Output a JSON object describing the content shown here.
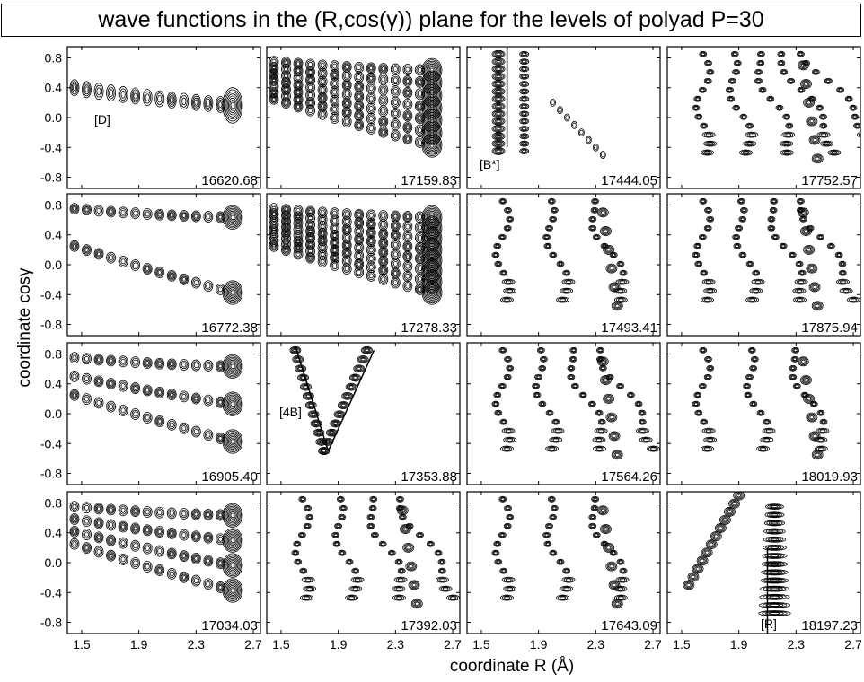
{
  "figure": {
    "title": "wave functions in the (R,cos(γ)) plane for the levels of polyad P=30",
    "xlabel": "coordinate R (Å)",
    "ylabel": "coordinate cosγ",
    "x_ticks": [
      "1.5",
      "1.9",
      "2.3",
      "2.7"
    ],
    "y_ticks": [
      "0.8",
      "0.4",
      "0.0",
      "-0.4",
      "-0.8"
    ]
  },
  "chart_data": {
    "type": "contour-grid",
    "rows": 4,
    "cols": 4,
    "xlim": [
      1.4,
      2.75
    ],
    "ylim": [
      -0.95,
      0.95
    ],
    "panels": [
      {
        "energy": "16620.68",
        "label": "[D]",
        "kind": "band",
        "nodes": 1
      },
      {
        "energy": "17159.83",
        "label": "",
        "kind": "band",
        "nodes": 7
      },
      {
        "energy": "17444.05",
        "label": "[B*]",
        "kind": "bstar"
      },
      {
        "energy": "17752.57",
        "label": "",
        "kind": "arch",
        "nodes": 4
      },
      {
        "energy": "16772.38",
        "label": "",
        "kind": "band",
        "nodes": 2
      },
      {
        "energy": "17278.33",
        "label": "",
        "kind": "band",
        "nodes": 8
      },
      {
        "energy": "17493.41",
        "label": "",
        "kind": "arch",
        "nodes": 2
      },
      {
        "energy": "17875.94",
        "label": "",
        "kind": "arch",
        "nodes": 3
      },
      {
        "energy": "16905.40",
        "label": "",
        "kind": "band",
        "nodes": 3
      },
      {
        "energy": "17353.88",
        "label": "[4B]",
        "kind": "v"
      },
      {
        "energy": "17564.26",
        "label": "",
        "kind": "arch",
        "nodes": 3
      },
      {
        "energy": "18019.93",
        "label": "",
        "kind": "arch",
        "nodes": 2
      },
      {
        "energy": "17034.03",
        "label": "",
        "kind": "band",
        "nodes": 4
      },
      {
        "energy": "17392.03",
        "label": "",
        "kind": "arch",
        "nodes": 3
      },
      {
        "energy": "17643.09",
        "label": "",
        "kind": "arch",
        "nodes": 2
      },
      {
        "energy": "18197.23",
        "label": "[R]",
        "kind": "r"
      }
    ]
  }
}
